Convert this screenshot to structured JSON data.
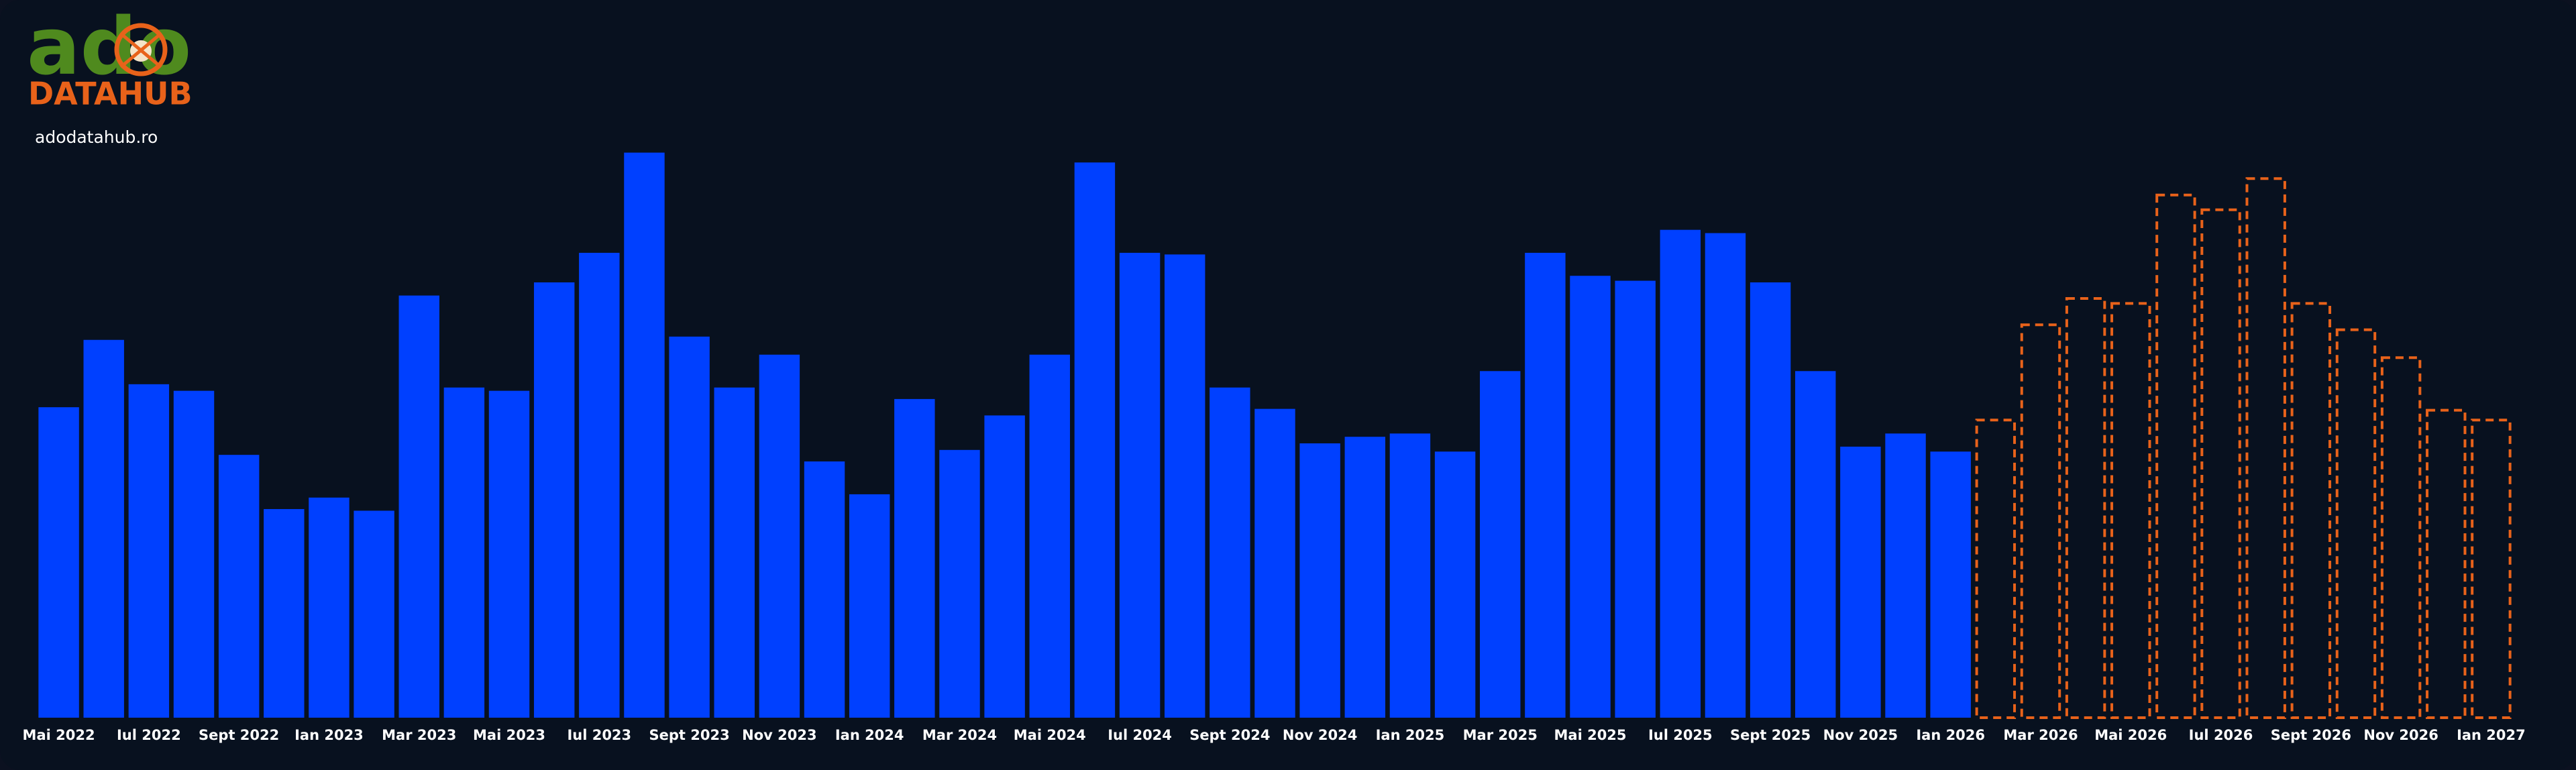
{
  "logo": {
    "brand": "ado",
    "product": "DATAHUB",
    "site": "adodatahub.ro"
  },
  "chart_data": {
    "type": "bar",
    "categories": [
      "Mai 2022",
      null,
      "Iul 2022",
      null,
      "Sept 2022",
      null,
      "Ian 2023",
      null,
      "Mar 2023",
      null,
      "Mai 2023",
      null,
      "Iul 2023",
      null,
      "Sept 2023",
      null,
      "Nov 2023",
      null,
      "Ian 2024",
      null,
      "Mar 2024",
      null,
      "Mai 2024",
      null,
      "Iul 2024",
      null,
      "Sept 2024",
      null,
      "Nov 2024",
      null,
      "Ian 2025",
      null,
      "Mar 2025",
      null,
      "Mai 2025",
      null,
      "Iul 2025",
      null,
      "Sept 2025",
      null,
      "Nov 2025",
      null,
      "Ian 2026",
      null,
      "Mar 2026",
      null,
      "Mai 2026",
      null,
      "Iul 2026",
      null,
      "Sept 2026",
      null,
      "Nov 2026",
      null,
      "Ian 2027"
    ],
    "series": [
      {
        "color": "#0040ff",
        "style": "solid",
        "values": [
          189,
          230,
          203,
          199,
          160,
          127,
          134,
          126,
          257,
          201,
          199,
          265,
          283,
          344,
          232,
          201,
          221,
          156,
          136,
          194,
          163,
          184,
          221,
          338,
          283,
          282,
          201,
          188,
          167,
          171,
          173,
          162,
          211,
          283,
          269,
          266,
          297,
          295,
          265,
          211,
          165,
          173,
          162,
          null,
          null,
          null,
          null,
          null,
          null,
          null,
          null,
          null,
          null,
          null,
          null
        ]
      },
      {
        "color": "#e8621a",
        "style": "dashed",
        "values": [
          null,
          null,
          null,
          null,
          null,
          null,
          null,
          null,
          null,
          null,
          null,
          null,
          null,
          null,
          null,
          null,
          null,
          null,
          null,
          null,
          null,
          null,
          null,
          null,
          null,
          null,
          null,
          null,
          null,
          null,
          null,
          null,
          null,
          null,
          null,
          null,
          null,
          null,
          null,
          null,
          null,
          null,
          null,
          182,
          240,
          256,
          253,
          319,
          310,
          329,
          253,
          237,
          220,
          188,
          182
        ]
      }
    ],
    "ylim": [
      0,
      350
    ]
  }
}
